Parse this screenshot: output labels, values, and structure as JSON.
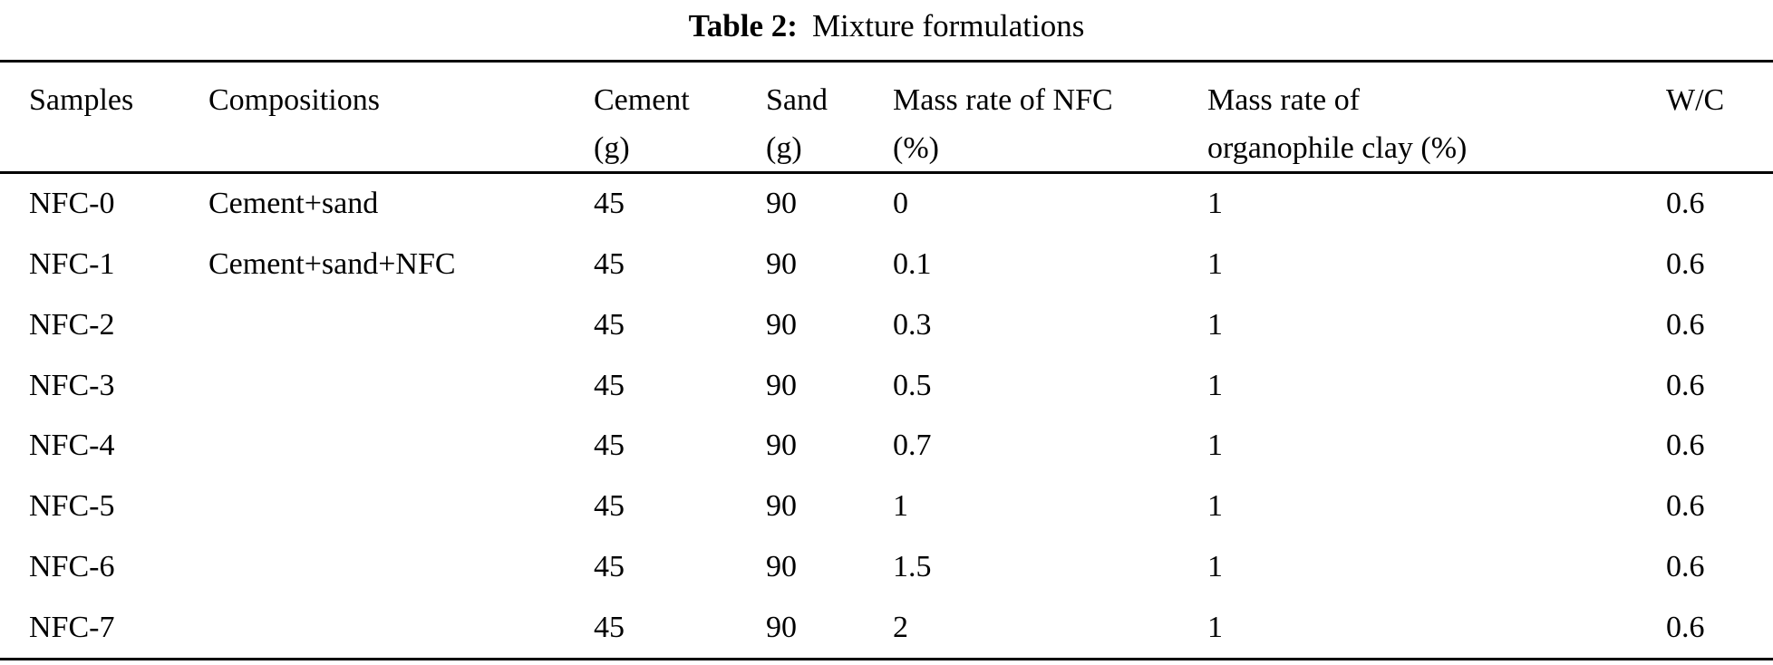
{
  "title": {
    "label": "Table 2:",
    "text": "Mixture formulations"
  },
  "table": {
    "columns": [
      {
        "line1": "Samples",
        "line2": ""
      },
      {
        "line1": "Compositions",
        "line2": ""
      },
      {
        "line1": "Cement",
        "line2": "(g)"
      },
      {
        "line1": "Sand",
        "line2": "(g)"
      },
      {
        "line1": "Mass rate of NFC",
        "line2": "(%)"
      },
      {
        "line1": "Mass rate of",
        "line2": "organophile clay (%)"
      },
      {
        "line1": "W/C",
        "line2": ""
      }
    ],
    "rows": [
      {
        "sample": "NFC-0",
        "composition": "Cement+sand",
        "cement": "45",
        "sand": "90",
        "nfc": "0",
        "clay": "1",
        "wc": "0.6"
      },
      {
        "sample": "NFC-1",
        "composition": "Cement+sand+NFC",
        "cement": "45",
        "sand": "90",
        "nfc": "0.1",
        "clay": "1",
        "wc": "0.6"
      },
      {
        "sample": "NFC-2",
        "composition": "",
        "cement": "45",
        "sand": "90",
        "nfc": "0.3",
        "clay": "1",
        "wc": "0.6"
      },
      {
        "sample": "NFC-3",
        "composition": "",
        "cement": "45",
        "sand": "90",
        "nfc": "0.5",
        "clay": "1",
        "wc": "0.6"
      },
      {
        "sample": "NFC-4",
        "composition": "",
        "cement": "45",
        "sand": "90",
        "nfc": "0.7",
        "clay": "1",
        "wc": "0.6"
      },
      {
        "sample": "NFC-5",
        "composition": "",
        "cement": "45",
        "sand": "90",
        "nfc": "1",
        "clay": "1",
        "wc": "0.6"
      },
      {
        "sample": "NFC-6",
        "composition": "",
        "cement": "45",
        "sand": "90",
        "nfc": "1.5",
        "clay": "1",
        "wc": "0.6"
      },
      {
        "sample": "NFC-7",
        "composition": "",
        "cement": "45",
        "sand": "90",
        "nfc": "2",
        "clay": "1",
        "wc": "0.6"
      }
    ]
  },
  "colors": {
    "text": "#000000",
    "background": "#ffffff",
    "rule": "#000000"
  }
}
